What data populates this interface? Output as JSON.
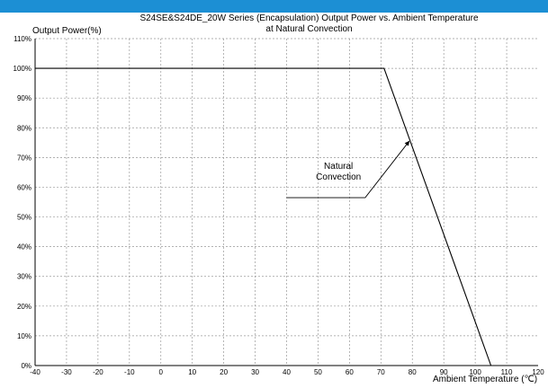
{
  "header": {
    "banner_text": ""
  },
  "chart_data": {
    "type": "line",
    "title": "S24SE&S24DE_20W Series (Encapsulation)  Output Power vs. Ambient Temperature",
    "subtitle": "at Natural Convection",
    "ylabel": "Output Power(%)",
    "xlabel": "Ambient Temperature (℃)",
    "xlim": [
      -40,
      120
    ],
    "ylim": [
      0,
      110
    ],
    "x_ticks": [
      -40,
      -30,
      -20,
      -10,
      0,
      10,
      20,
      30,
      40,
      50,
      60,
      70,
      80,
      90,
      100,
      110,
      120
    ],
    "y_ticks": [
      "0%",
      "10%",
      "20%",
      "30%",
      "40%",
      "50%",
      "60%",
      "70%",
      "80%",
      "90%",
      "100%",
      "110%"
    ],
    "grid": true,
    "series": [
      {
        "name": "Natural Convection",
        "x": [
          -40,
          71,
          105
        ],
        "y": [
          100,
          100,
          0
        ]
      }
    ],
    "annotations": [
      {
        "lines": [
          "Natural",
          "Convection"
        ],
        "leader_x": [
          40,
          65,
          79
        ],
        "leader_y": [
          56.5,
          56.5,
          75.5
        ]
      }
    ],
    "colors": {
      "line": "#000000",
      "grid": "#999999",
      "banner": "#1c8fd4"
    }
  }
}
